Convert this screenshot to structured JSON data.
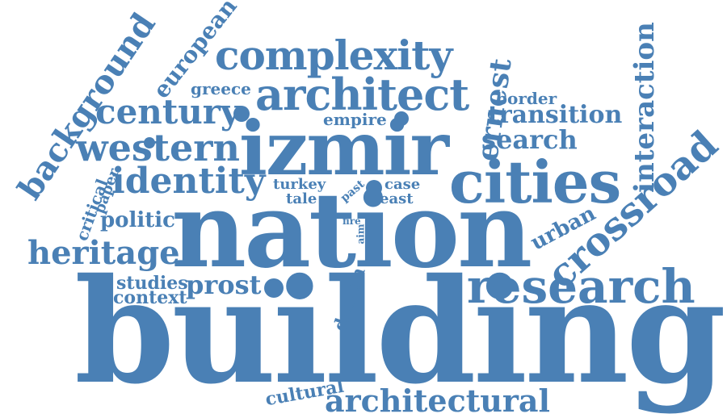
{
  "accent_color": "#4a80b5",
  "words": {
    "building": "building",
    "nation": "nation",
    "izmir": "izmir",
    "cities": "cities",
    "research": "research",
    "architect": "architect",
    "complexity": "complexity",
    "western": "western",
    "identity": "identity",
    "century": "century",
    "heritage": "heritage",
    "crossroad": "crossroad",
    "architectural": "architectural",
    "background": "background",
    "european": "european",
    "ernest": "ernest",
    "interaction": "interaction",
    "transition": "transition",
    "search": "search",
    "border": "border",
    "prost": "prost",
    "studies": "studies",
    "context": "context",
    "politic": "politic",
    "critical": "critical",
    "paper": "paper",
    "greece": "greece",
    "empire": "empire",
    "turkey": "turkey",
    "tale": "tale",
    "case": "case",
    "east": "east",
    "past": "past",
    "fire": "fire",
    "aim": "aim",
    "urban": "urban",
    "design": "design",
    "cultural": "cultural"
  }
}
